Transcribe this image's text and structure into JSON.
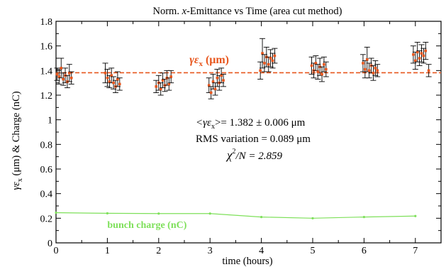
{
  "chart_data": {
    "type": "scatter",
    "title": "Norm. x-Emittance vs Time (area cut method)",
    "title_parts": {
      "pre": "Norm. ",
      "italic": "x",
      "post": "-Emittance vs Time (area cut method)"
    },
    "xlabel": "time (hours)",
    "ylabel": "γε_x (μm) & Charge (nC)",
    "ylabel_parts": {
      "gamma": "γε",
      "sub": "x",
      "rest": " (μm) & Charge (nC)"
    },
    "xlim": [
      0,
      7.5
    ],
    "ylim": [
      0,
      1.8
    ],
    "xticks": [
      0,
      1,
      2,
      3,
      4,
      5,
      6,
      7
    ],
    "yticks": [
      0,
      0.2,
      0.4,
      0.6,
      0.8,
      1,
      1.2,
      1.4,
      1.6,
      1.8
    ],
    "ytick_labels": [
      "0",
      "0.2",
      "0.4",
      "0.6",
      "0.8",
      "1",
      "1.2",
      "1.4",
      "1.6",
      "1.8"
    ],
    "grid": false,
    "colors": {
      "emittance": "#e8561d",
      "fit": "#e8561d",
      "charge": "#7ee05a",
      "errorbar": "#000000"
    },
    "emittance_series": {
      "name": "γε_x (μm)",
      "label_parts": {
        "gamma": "γε",
        "sub": "x",
        "rest": " (μm)"
      },
      "label_pos": [
        2.6,
        1.46
      ],
      "points": [
        {
          "x": 0.02,
          "y": 1.37,
          "err": 0.05
        },
        {
          "x": 0.06,
          "y": 1.35,
          "err": 0.06
        },
        {
          "x": 0.1,
          "y": 1.42,
          "err": 0.08
        },
        {
          "x": 0.14,
          "y": 1.33,
          "err": 0.05
        },
        {
          "x": 0.18,
          "y": 1.36,
          "err": 0.06
        },
        {
          "x": 0.22,
          "y": 1.31,
          "err": 0.05
        },
        {
          "x": 0.26,
          "y": 1.38,
          "err": 0.07
        },
        {
          "x": 0.3,
          "y": 1.34,
          "err": 0.05
        },
        {
          "x": 0.96,
          "y": 1.38,
          "err": 0.08
        },
        {
          "x": 1.0,
          "y": 1.34,
          "err": 0.07
        },
        {
          "x": 1.04,
          "y": 1.31,
          "err": 0.05
        },
        {
          "x": 1.08,
          "y": 1.36,
          "err": 0.06
        },
        {
          "x": 1.12,
          "y": 1.3,
          "err": 0.05
        },
        {
          "x": 1.16,
          "y": 1.27,
          "err": 0.05
        },
        {
          "x": 1.2,
          "y": 1.33,
          "err": 0.06
        },
        {
          "x": 1.24,
          "y": 1.29,
          "err": 0.05
        },
        {
          "x": 1.95,
          "y": 1.27,
          "err": 0.05
        },
        {
          "x": 2.0,
          "y": 1.3,
          "err": 0.06
        },
        {
          "x": 2.04,
          "y": 1.25,
          "err": 0.05
        },
        {
          "x": 2.08,
          "y": 1.32,
          "err": 0.06
        },
        {
          "x": 2.12,
          "y": 1.28,
          "err": 0.05
        },
        {
          "x": 2.16,
          "y": 1.34,
          "err": 0.06
        },
        {
          "x": 2.2,
          "y": 1.29,
          "err": 0.05
        },
        {
          "x": 2.24,
          "y": 1.35,
          "err": 0.05
        },
        {
          "x": 2.98,
          "y": 1.28,
          "err": 0.06
        },
        {
          "x": 3.02,
          "y": 1.22,
          "err": 0.05
        },
        {
          "x": 3.06,
          "y": 1.31,
          "err": 0.06
        },
        {
          "x": 3.1,
          "y": 1.25,
          "err": 0.05
        },
        {
          "x": 3.14,
          "y": 1.34,
          "err": 0.07
        },
        {
          "x": 3.18,
          "y": 1.3,
          "err": 0.06
        },
        {
          "x": 3.22,
          "y": 1.36,
          "err": 0.06
        },
        {
          "x": 3.26,
          "y": 1.32,
          "err": 0.05
        },
        {
          "x": 3.98,
          "y": 1.4,
          "err": 0.07
        },
        {
          "x": 4.02,
          "y": 1.54,
          "err": 0.12
        },
        {
          "x": 4.06,
          "y": 1.46,
          "err": 0.07
        },
        {
          "x": 4.1,
          "y": 1.51,
          "err": 0.08
        },
        {
          "x": 4.14,
          "y": 1.45,
          "err": 0.06
        },
        {
          "x": 4.18,
          "y": 1.5,
          "err": 0.07
        },
        {
          "x": 4.22,
          "y": 1.48,
          "err": 0.06
        },
        {
          "x": 4.26,
          "y": 1.52,
          "err": 0.06
        },
        {
          "x": 4.98,
          "y": 1.44,
          "err": 0.07
        },
        {
          "x": 5.02,
          "y": 1.4,
          "err": 0.06
        },
        {
          "x": 5.06,
          "y": 1.46,
          "err": 0.06
        },
        {
          "x": 5.1,
          "y": 1.39,
          "err": 0.06
        },
        {
          "x": 5.14,
          "y": 1.43,
          "err": 0.07
        },
        {
          "x": 5.18,
          "y": 1.37,
          "err": 0.06
        },
        {
          "x": 5.22,
          "y": 1.45,
          "err": 0.06
        },
        {
          "x": 5.26,
          "y": 1.41,
          "err": 0.06
        },
        {
          "x": 5.98,
          "y": 1.46,
          "err": 0.07
        },
        {
          "x": 6.02,
          "y": 1.41,
          "err": 0.07
        },
        {
          "x": 6.06,
          "y": 1.49,
          "err": 0.1
        },
        {
          "x": 6.1,
          "y": 1.4,
          "err": 0.06
        },
        {
          "x": 6.14,
          "y": 1.44,
          "err": 0.06
        },
        {
          "x": 6.18,
          "y": 1.38,
          "err": 0.06
        },
        {
          "x": 6.22,
          "y": 1.42,
          "err": 0.06
        },
        {
          "x": 6.26,
          "y": 1.4,
          "err": 0.05
        },
        {
          "x": 6.96,
          "y": 1.53,
          "err": 0.07
        },
        {
          "x": 7.0,
          "y": 1.48,
          "err": 0.07
        },
        {
          "x": 7.04,
          "y": 1.55,
          "err": 0.08
        },
        {
          "x": 7.08,
          "y": 1.5,
          "err": 0.06
        },
        {
          "x": 7.12,
          "y": 1.54,
          "err": 0.07
        },
        {
          "x": 7.16,
          "y": 1.52,
          "err": 0.06
        },
        {
          "x": 7.2,
          "y": 1.56,
          "err": 0.07
        },
        {
          "x": 7.26,
          "y": 1.4,
          "err": 0.05
        }
      ]
    },
    "fit_line": {
      "y": 1.382,
      "x_range": [
        0,
        7.5
      ]
    },
    "charge_series": {
      "name": "bunch charge (nC)",
      "label_pos": [
        1.0,
        0.12
      ],
      "points": [
        {
          "x": 0.0,
          "y": 0.245
        },
        {
          "x": 1.0,
          "y": 0.24
        },
        {
          "x": 2.0,
          "y": 0.238
        },
        {
          "x": 3.0,
          "y": 0.238
        },
        {
          "x": 4.0,
          "y": 0.21
        },
        {
          "x": 5.0,
          "y": 0.2
        },
        {
          "x": 6.0,
          "y": 0.21
        },
        {
          "x": 7.0,
          "y": 0.218
        }
      ]
    },
    "annotations": {
      "mean_lhs": "<γε",
      "mean_sub": "x",
      "mean_rhs": ">=  1.382 ± 0.006 μm",
      "rms": "RMS variation = 0.089 μm",
      "chi_chi": "χ",
      "chi_sup": "2",
      "chi_rest": "/N = 2.859"
    }
  }
}
